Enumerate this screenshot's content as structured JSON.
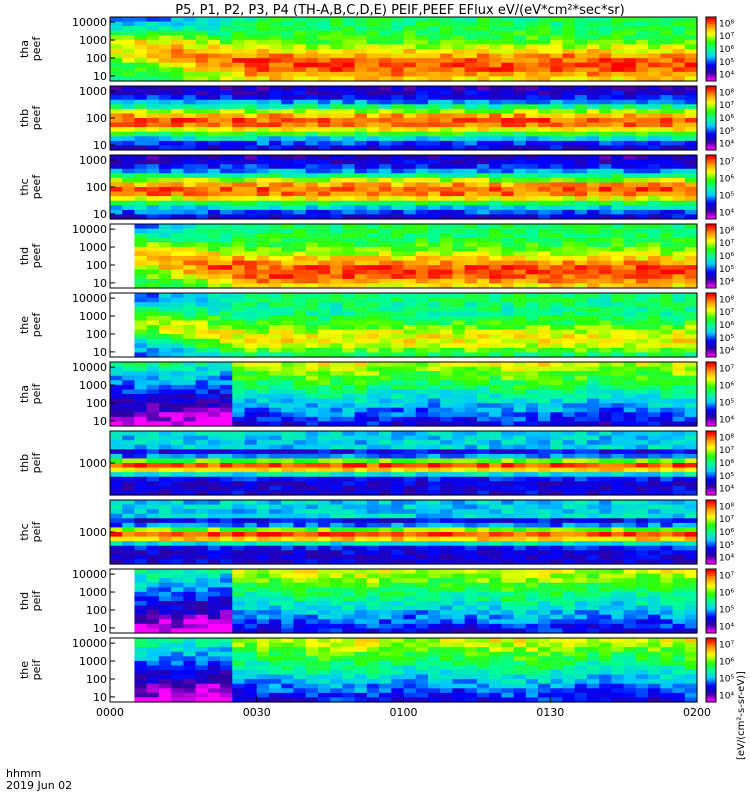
{
  "title": "P5, P1, P2, P3, P4 (TH-A,B,C,D,E) PEIF,PEEF EFlux eV/(eV*cm²*sec*sr)",
  "footer": {
    "row1_label": "hhmm",
    "row2_label": "2019 Jun 02",
    "x_ticks": [
      "0000",
      "0030",
      "0100",
      "0130",
      "0200"
    ]
  },
  "colorbar_label": "[eV/(cm²-s-sr-eV)]",
  "colors": {
    "colormap": [
      "#ff00ff",
      "#2f00a0",
      "#0000ff",
      "#00c8ff",
      "#00ff96",
      "#32ff00",
      "#ffff00",
      "#ff9600",
      "#ff0000"
    ]
  },
  "chart_data": [
    {
      "type": "heatmap",
      "subtype": "energy-time spectrogram stack",
      "x_axis": {
        "range": [
          "0000",
          "0200"
        ],
        "ticks": [
          "0000",
          "0030",
          "0100",
          "0130",
          "0200"
        ],
        "tick_labels_row1": "hhmm",
        "tick_labels_row2": "2019 Jun 02"
      },
      "panels": [
        {
          "probe": "tha",
          "product": "peef",
          "y_ticks": [
            "10",
            "100",
            "1000",
            "10000"
          ],
          "cbar_ticks": [
            "10⁴",
            "10⁵",
            "10⁶",
            "10⁷",
            "10⁸"
          ]
        },
        {
          "probe": "thb",
          "product": "peef",
          "y_ticks": [
            "10",
            "100",
            "1000"
          ],
          "cbar_ticks": [
            "10⁴",
            "10⁵",
            "10⁶",
            "10⁷",
            "10⁸"
          ]
        },
        {
          "probe": "thc",
          "product": "peef",
          "y_ticks": [
            "10",
            "100",
            "1000"
          ],
          "cbar_ticks": [
            "10⁴",
            "10⁵",
            "10⁶",
            "10⁷"
          ]
        },
        {
          "probe": "thd",
          "product": "peef",
          "y_ticks": [
            "10",
            "100",
            "1000",
            "10000"
          ],
          "cbar_ticks": [
            "10⁴",
            "10⁵",
            "10⁶",
            "10⁷",
            "10⁸"
          ]
        },
        {
          "probe": "the",
          "product": "peef",
          "y_ticks": [
            "10",
            "100",
            "1000",
            "10000"
          ],
          "cbar_ticks": [
            "10⁴",
            "10⁵",
            "10⁶",
            "10⁷",
            "10⁸"
          ]
        },
        {
          "probe": "tha",
          "product": "peif",
          "y_ticks": [
            "10",
            "100",
            "1000",
            "10000"
          ],
          "cbar_ticks": [
            "10⁴",
            "10⁵",
            "10⁶",
            "10⁷"
          ]
        },
        {
          "probe": "thb",
          "product": "peif",
          "y_ticks": [
            "1000"
          ],
          "cbar_ticks": [
            "10⁴",
            "10⁵",
            "10⁶",
            "10⁷",
            "10⁸"
          ]
        },
        {
          "probe": "thc",
          "product": "peif",
          "y_ticks": [
            "1000"
          ],
          "cbar_ticks": [
            "10⁴",
            "10⁵",
            "10⁶",
            "10⁷",
            "10⁸"
          ]
        },
        {
          "probe": "thd",
          "product": "peif",
          "y_ticks": [
            "10",
            "100",
            "1000",
            "10000"
          ],
          "cbar_ticks": [
            "10⁴",
            "10⁵",
            "10⁶",
            "10⁷"
          ]
        },
        {
          "probe": "the",
          "product": "peif",
          "y_ticks": [
            "10",
            "100",
            "1000",
            "10000"
          ],
          "cbar_ticks": [
            "10⁴",
            "10⁵",
            "10⁶",
            "10⁷"
          ]
        }
      ]
    }
  ]
}
